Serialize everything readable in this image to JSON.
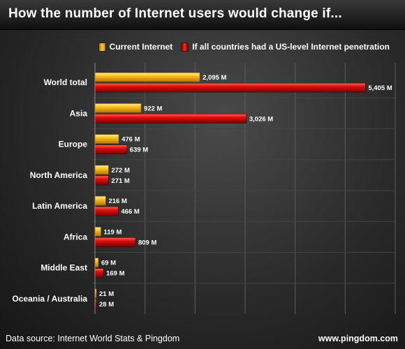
{
  "chart_data": {
    "type": "bar",
    "orientation": "horizontal",
    "title": "How the number of Internet users would change if...",
    "categories": [
      "World total",
      "Asia",
      "Europe",
      "North America",
      "Latin America",
      "Africa",
      "Middle East",
      "Oceania / Australia"
    ],
    "series": [
      {
        "name": "Current Internet",
        "values": [
          2095,
          922,
          476,
          272,
          216,
          119,
          69,
          21
        ],
        "labels": [
          "2,095 M",
          "922 M",
          "476 M",
          "272 M",
          "216 M",
          "119 M",
          "69 M",
          "21 M"
        ],
        "color": "#f2b51b"
      },
      {
        "name": "If all countries had a US-level Internet penetration",
        "values": [
          5405,
          3026,
          639,
          271,
          466,
          809,
          169,
          28
        ],
        "labels": [
          "5,405 M",
          "3,026 M",
          "639 M",
          "271 M",
          "466 M",
          "809 M",
          "169 M",
          "28 M"
        ],
        "color": "#cc0a0a"
      }
    ],
    "xlim": [
      0,
      6000
    ],
    "grid": true,
    "legend_position": "top-right",
    "source": "Data source: Internet World Stats & Pingdom",
    "site": "www.pingdom.com"
  }
}
